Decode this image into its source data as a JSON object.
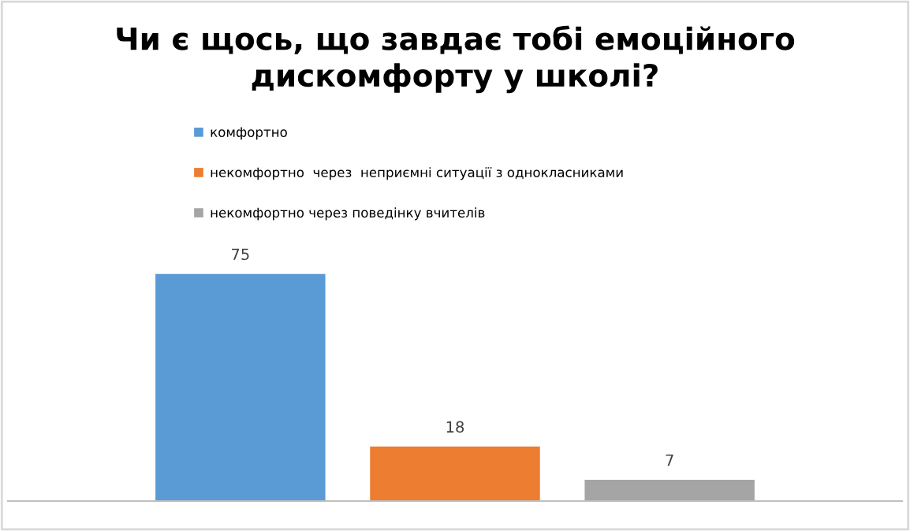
{
  "chart_data": {
    "type": "bar",
    "title": "Чи є щось, що завдає тобі емоційного дискомфорту у школі?",
    "categories": [
      null
    ],
    "series": [
      {
        "name": "комфортно",
        "color": "#5b9bd5",
        "values": [
          75
        ]
      },
      {
        "name": "некомфортно  через  неприємні ситуації з однокласниками",
        "color": "#ed7d31",
        "values": [
          18
        ]
      },
      {
        "name": "некомфортно через поведінку вчителів",
        "color": "#a5a5a5",
        "values": [
          7
        ]
      }
    ],
    "data_labels": true,
    "legend": "top left",
    "grid": false
  }
}
